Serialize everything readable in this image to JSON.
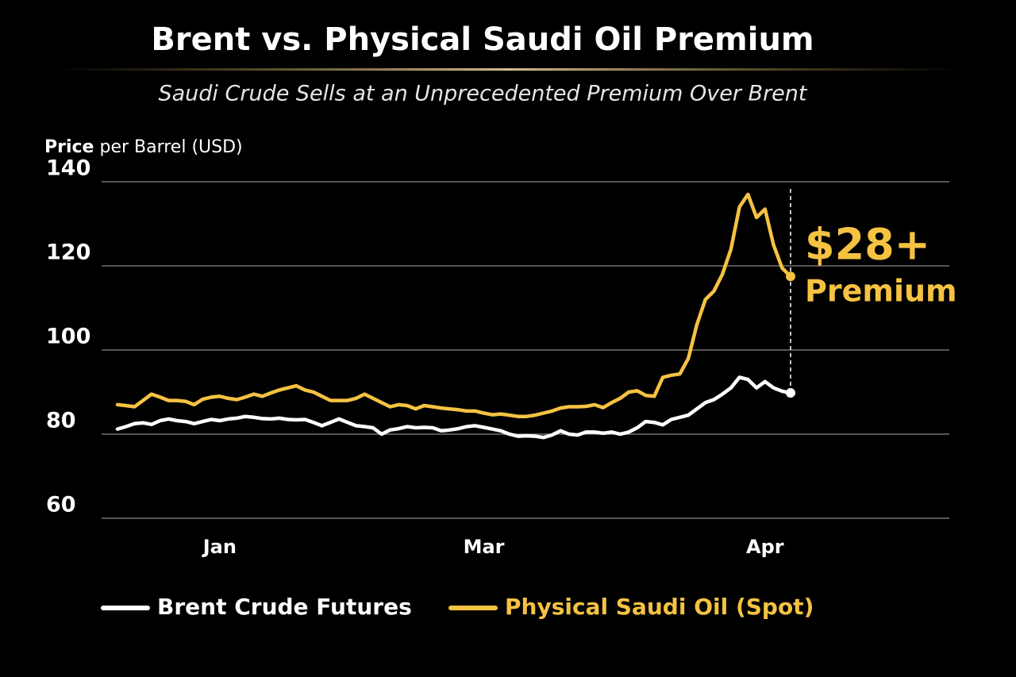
{
  "chart_data": {
    "type": "line",
    "title": "Brent vs. Physical Saudi Oil Premium",
    "subtitle": "Saudi Crude Sells at an Unprecedented Premium Over Brent",
    "y_label": "Price per Barrel (USD)",
    "annotation": {
      "value": "$28+",
      "text": "Premium"
    },
    "ylim": [
      60,
      140
    ],
    "yticks": [
      60,
      80,
      100,
      120,
      140
    ],
    "grid": true,
    "legend": "bottom",
    "categories": [
      null,
      null,
      null,
      null,
      null,
      null,
      null,
      null,
      null,
      null,
      null,
      null,
      "Jan",
      null,
      null,
      null,
      null,
      null,
      null,
      null,
      null,
      null,
      null,
      null,
      null,
      null,
      null,
      null,
      null,
      null,
      null,
      null,
      null,
      null,
      null,
      null,
      null,
      null,
      null,
      null,
      null,
      null,
      null,
      "Mar",
      null,
      null,
      null,
      null,
      null,
      null,
      null,
      null,
      null,
      null,
      null,
      null,
      null,
      null,
      null,
      null,
      null,
      null,
      null,
      null,
      null,
      null,
      null,
      null,
      null,
      null,
      null,
      null,
      null,
      null,
      null,
      null,
      "Apr",
      null,
      null,
      null
    ],
    "series": [
      {
        "name": "Brent Crude Futures",
        "color": "#ffffff",
        "values": [
          81.2,
          81.8,
          82.5,
          82.7,
          82.3,
          83.2,
          83.6,
          83.2,
          83,
          82.5,
          83,
          83.5,
          83.2,
          83.6,
          83.8,
          84.2,
          84,
          83.7,
          83.6,
          83.8,
          83.5,
          83.4,
          83.5,
          82.8,
          82,
          82.8,
          83.6,
          82.8,
          82,
          81.8,
          81.5,
          80,
          81,
          81.3,
          81.8,
          81.5,
          81.6,
          81.5,
          80.8,
          81,
          81.3,
          81.8,
          82,
          81.6,
          81.2,
          80.8,
          80,
          79.5,
          79.6,
          79.5,
          79.2,
          79.8,
          80.8,
          80,
          79.8,
          80.5,
          80.5,
          80.2,
          80.5,
          80,
          80.5,
          81.5,
          83,
          82.8,
          82.2,
          83.5,
          84,
          84.5,
          86,
          87.5,
          88.2,
          89.5,
          91,
          93.5,
          93,
          91,
          92.5,
          91,
          90.2,
          89.8
        ]
      },
      {
        "name": "Physical Saudi Oil (Spot)",
        "color": "#f5c242",
        "values": [
          87,
          86.8,
          86.5,
          88,
          89.5,
          88.8,
          88,
          88,
          87.8,
          87,
          88.3,
          88.8,
          89,
          88.5,
          88.2,
          88.8,
          89.5,
          89,
          89.8,
          90.5,
          91,
          91.5,
          90.5,
          90,
          89,
          88,
          88,
          88,
          88.5,
          89.5,
          88.5,
          87.5,
          86.5,
          87,
          86.8,
          86,
          86.8,
          86.5,
          86.2,
          86,
          85.8,
          85.5,
          85.5,
          85,
          84.6,
          84.8,
          84.5,
          84.2,
          84.2,
          84.5,
          85,
          85.5,
          86.2,
          86.5,
          86.5,
          86.6,
          87,
          86.3,
          87.5,
          88.5,
          90,
          90.3,
          89.2,
          89,
          93.5,
          94,
          94.3,
          98,
          106,
          112,
          114,
          118,
          124,
          134,
          137,
          131.5,
          133.5,
          125,
          119.5,
          117.5
        ]
      }
    ]
  }
}
